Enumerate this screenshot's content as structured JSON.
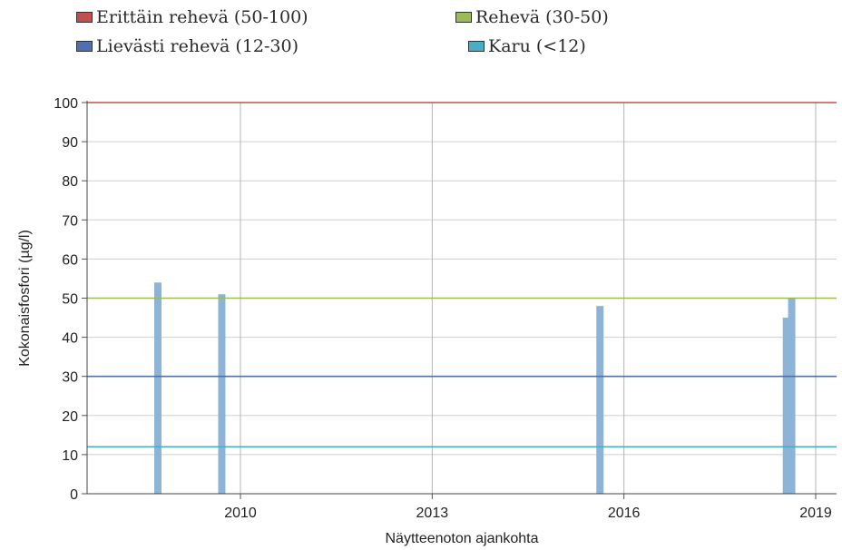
{
  "chart_data": {
    "type": "bar",
    "xlabel": "Näytteenoton ajankohta",
    "ylabel": "Kokonaisfosfori (µg/l)",
    "ylim": [
      0,
      100
    ],
    "yticks": [
      0,
      10,
      20,
      30,
      40,
      50,
      60,
      70,
      80,
      90,
      100
    ],
    "xticks": [
      "2010",
      "2013",
      "2016",
      "2019"
    ],
    "grid": true,
    "legend": [
      {
        "label": "Erittäin rehevä (50-100)",
        "color": "#c0504d"
      },
      {
        "label": "Rehevä (30-50)",
        "color": "#9bbb59"
      },
      {
        "label": "Lievästi rehevä (12-30)",
        "color": "#4f6fad"
      },
      {
        "label": "Karu (<12)",
        "color": "#4bacc6"
      }
    ],
    "threshold_lines": [
      {
        "value": 100,
        "color": "#c0504d"
      },
      {
        "value": 50,
        "color": "#9bbb59"
      },
      {
        "value": 30,
        "color": "#4f6fad"
      },
      {
        "value": 12,
        "color": "#4bacc6"
      }
    ],
    "bar_color": "#8db4d6",
    "points": [
      {
        "x": "2008-09",
        "y": 54
      },
      {
        "x": "2009-09",
        "y": 51
      },
      {
        "x": "2015-08",
        "y": 48
      },
      {
        "x": "2018-07",
        "y": 45
      },
      {
        "x": "2018-08",
        "y": 50
      }
    ]
  }
}
